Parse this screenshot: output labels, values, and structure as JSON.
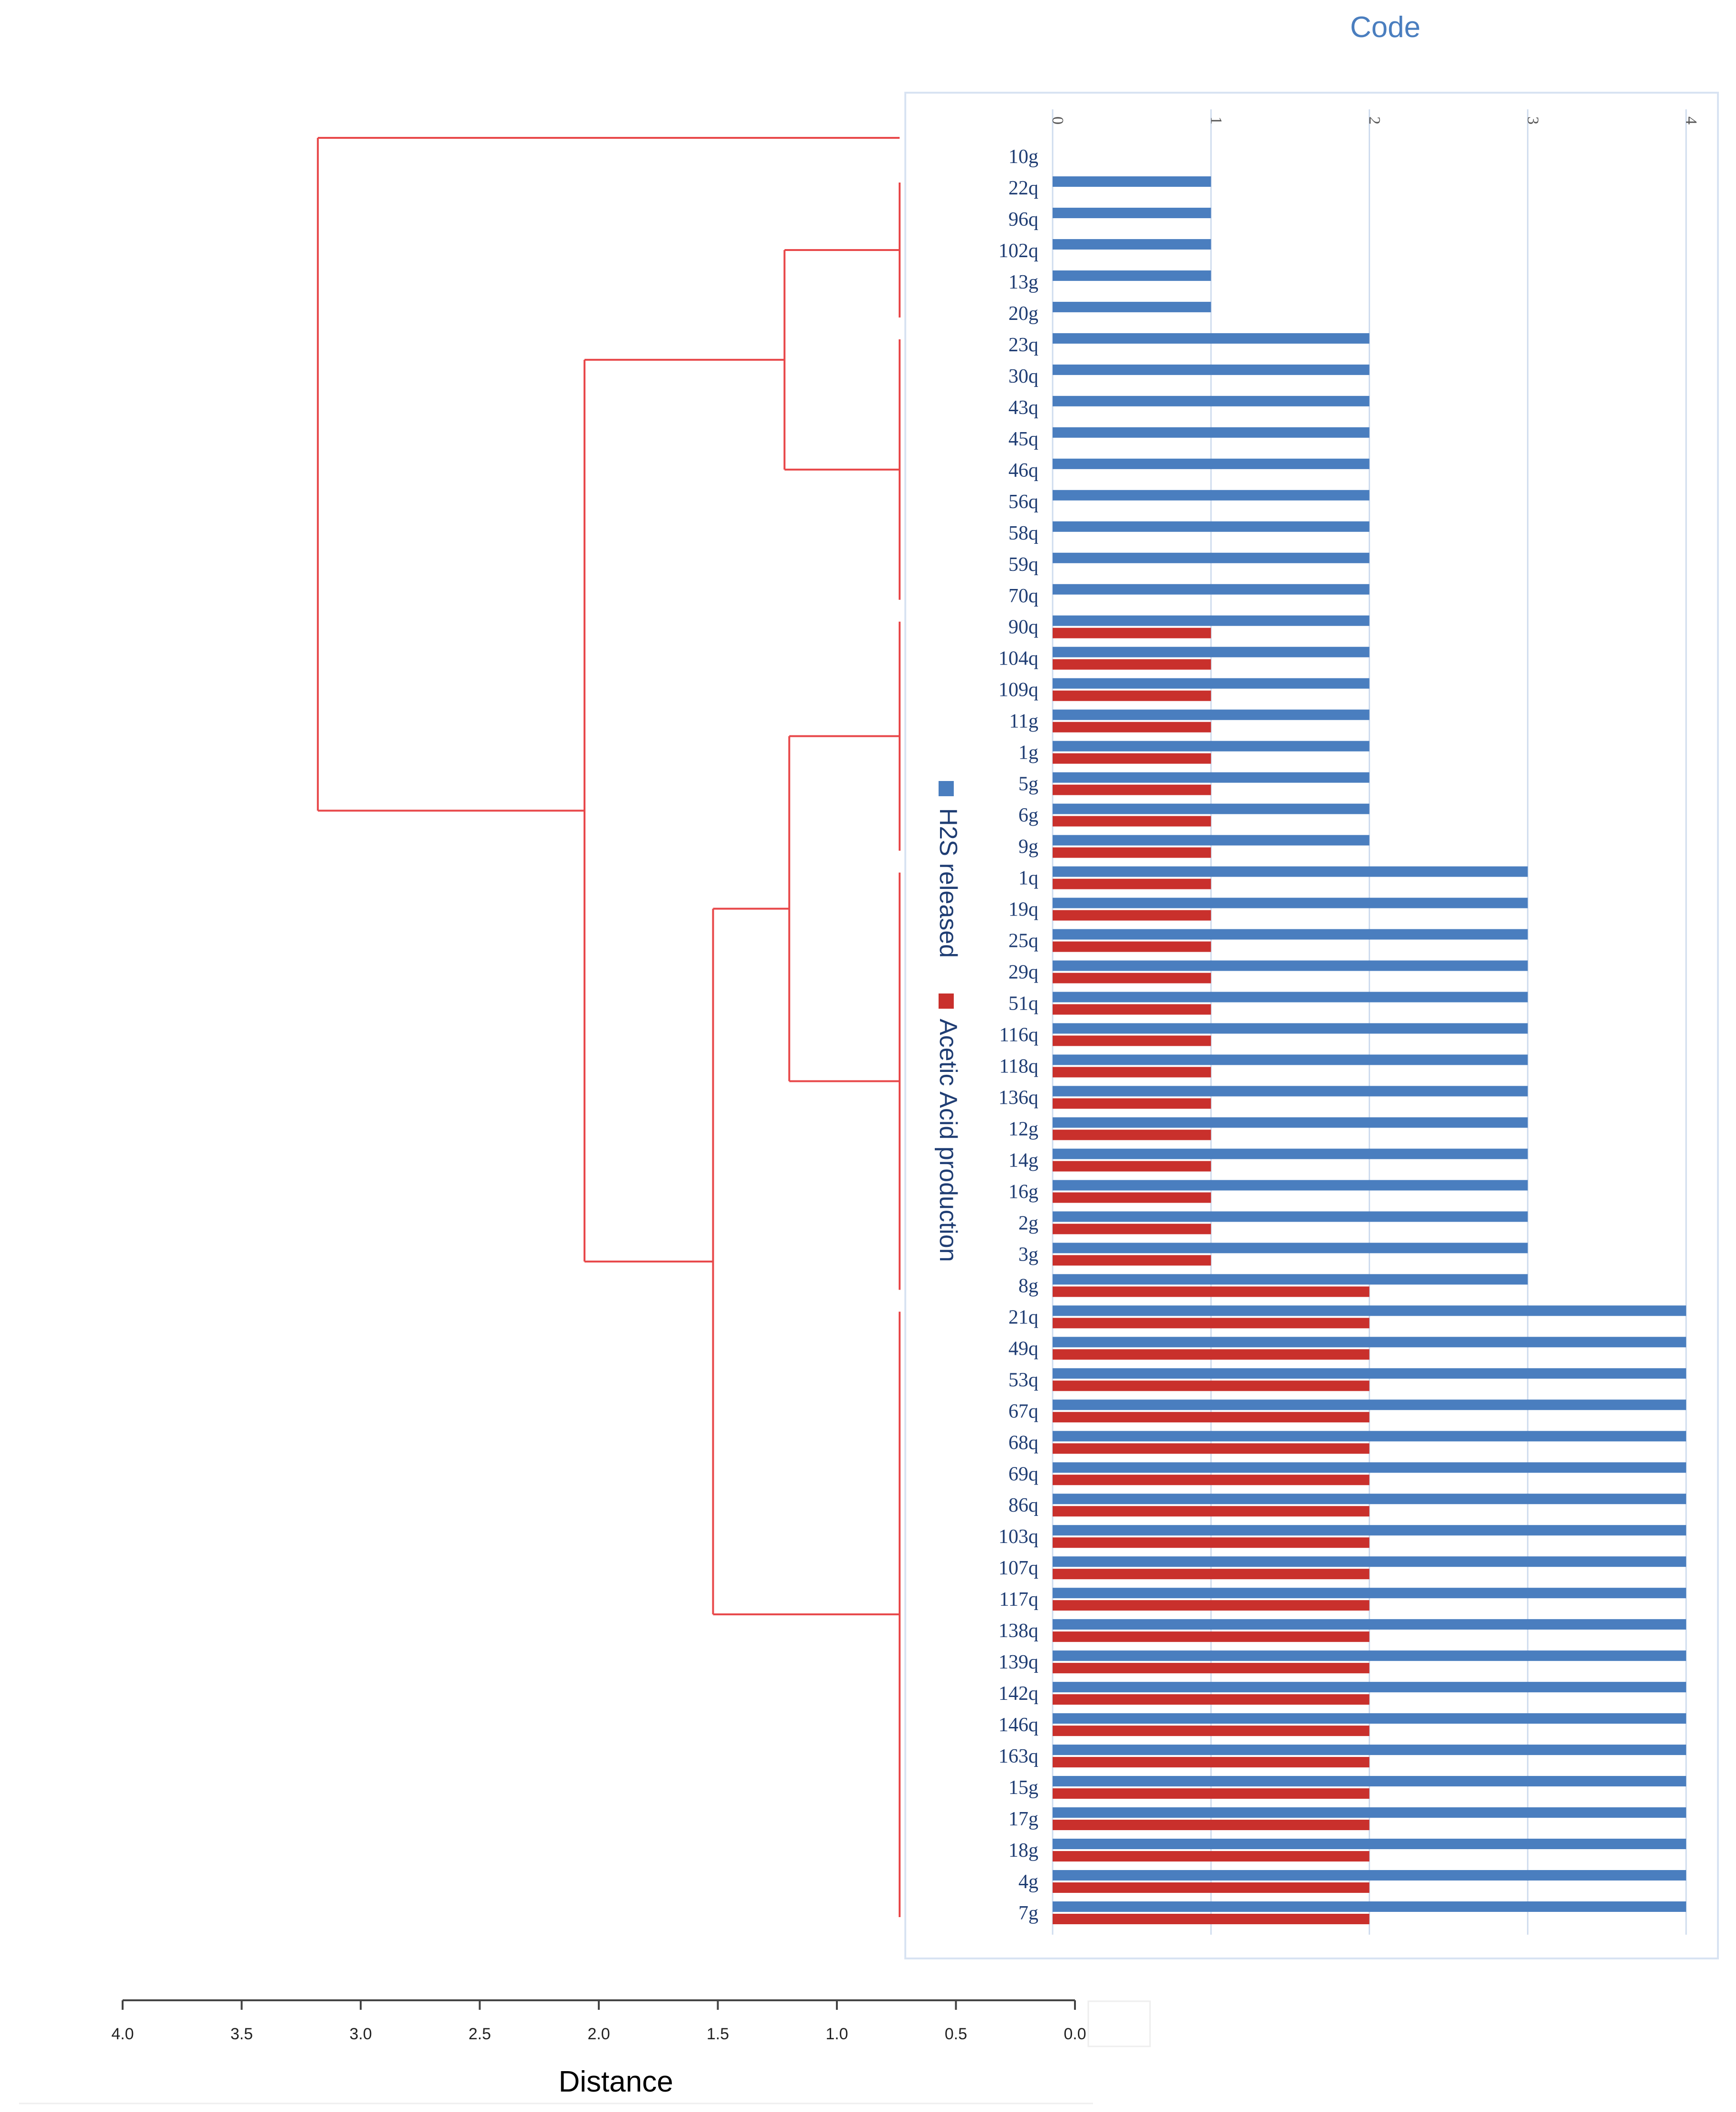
{
  "chart_data": [
    {
      "type": "bar",
      "orientation": "horizontal",
      "title": "Code",
      "xlim": [
        0,
        4
      ],
      "xticks": [
        "0",
        "1",
        "2",
        "3",
        "4"
      ],
      "grid": true,
      "legend_position": "left-rotated",
      "colors": {
        "h2s": "#4a7ebf",
        "acetic": "#c9302c",
        "title": "#4a7ebf",
        "labels": "#1f3d73",
        "grid": "#cfdcee"
      },
      "categories": [
        "10g",
        "22q",
        "96q",
        "102q",
        "13g",
        "20g",
        "23q",
        "30q",
        "43q",
        "45q",
        "46q",
        "56q",
        "58q",
        "59q",
        "70q",
        "90q",
        "104q",
        "109q",
        "11g",
        "1g",
        "5g",
        "6g",
        "9g",
        "1q",
        "19q",
        "25q",
        "29q",
        "51q",
        "116q",
        "118q",
        "136q",
        "12g",
        "14g",
        "16g",
        "2g",
        "3g",
        "8g",
        "21q",
        "49q",
        "53q",
        "67q",
        "68q",
        "69q",
        "86q",
        "103q",
        "107q",
        "117q",
        "138q",
        "139q",
        "142q",
        "146q",
        "163q",
        "15g",
        "17g",
        "18g",
        "4g",
        "7g"
      ],
      "series": [
        {
          "name": "H2S released",
          "values": [
            0,
            1,
            1,
            1,
            1,
            1,
            2,
            2,
            2,
            2,
            2,
            2,
            2,
            2,
            2,
            2,
            2,
            2,
            2,
            2,
            2,
            2,
            2,
            3,
            3,
            3,
            3,
            3,
            3,
            3,
            3,
            3,
            3,
            3,
            3,
            3,
            3,
            4,
            4,
            4,
            4,
            4,
            4,
            4,
            4,
            4,
            4,
            4,
            4,
            4,
            4,
            4,
            4,
            4,
            4,
            4,
            4
          ]
        },
        {
          "name": "Acetic Acid production",
          "values": [
            0,
            0,
            0,
            0,
            0,
            0,
            0,
            0,
            0,
            0,
            0,
            0,
            0,
            0,
            0,
            1,
            1,
            1,
            1,
            1,
            1,
            1,
            1,
            1,
            1,
            1,
            1,
            1,
            1,
            1,
            1,
            1,
            1,
            1,
            1,
            1,
            2,
            2,
            2,
            2,
            2,
            2,
            2,
            2,
            2,
            2,
            2,
            2,
            2,
            2,
            2,
            2,
            2,
            2,
            2,
            2,
            2
          ]
        }
      ]
    },
    {
      "type": "dendrogram",
      "xlabel": "Distance",
      "xlim": [
        0,
        4
      ],
      "xtick_labels": [
        "4.0",
        "3.5",
        "3.0",
        "2.5",
        "2.0",
        "1.5",
        "1.0",
        "0.5",
        "0.0"
      ],
      "xtick_values": [
        4.0,
        3.5,
        3.0,
        2.5,
        2.0,
        1.5,
        1.0,
        0.5,
        0.0
      ],
      "color": "#e8484a",
      "leaf_groups": [
        {
          "from": 0,
          "to": 0
        },
        {
          "from": 1,
          "to": 5
        },
        {
          "from": 6,
          "to": 14
        },
        {
          "from": 15,
          "to": 22
        },
        {
          "from": 23,
          "to": 36
        },
        {
          "from": 37,
          "to": 56
        }
      ],
      "merges": [
        {
          "a": "g1",
          "b": "g2",
          "distance": 1.22
        },
        {
          "a": "g3",
          "b": "g4",
          "distance": 1.2
        },
        {
          "a": "g3g4",
          "b": "g5",
          "distance": 1.52
        },
        {
          "a": "g3g4g5",
          "b": "g1g2",
          "distance": 2.06
        },
        {
          "a": "g0",
          "b": "rest",
          "distance": 3.18
        }
      ]
    }
  ]
}
